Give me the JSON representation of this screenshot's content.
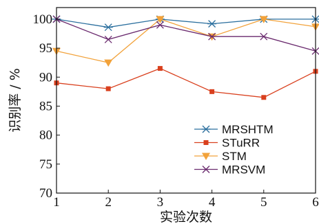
{
  "chart_data": {
    "type": "line",
    "xlabel": "实验次数",
    "ylabel": "识别率 / %",
    "x": [
      1,
      2,
      3,
      4,
      5,
      6
    ],
    "xlim": [
      1,
      6
    ],
    "ylim": [
      70,
      102
    ],
    "xticks": [
      "1",
      "2",
      "3",
      "4",
      "5",
      "6"
    ],
    "yticks": [
      70,
      75,
      80,
      85,
      90,
      95,
      100
    ],
    "yticklabels": [
      "70",
      "75",
      "80",
      "85",
      "90",
      "95",
      "100"
    ],
    "grid": false,
    "legend_position": "right",
    "series": [
      {
        "name": "MRSHTM",
        "color": "#2b6f9e",
        "marker": "asterisk",
        "values": [
          100,
          98.6,
          100,
          99.2,
          100,
          100
        ]
      },
      {
        "name": "STuRR",
        "color": "#d9401e",
        "marker": "square",
        "values": [
          89,
          88,
          91.5,
          87.5,
          86.5,
          91
        ]
      },
      {
        "name": "STM",
        "color": "#f2a23a",
        "marker": "triangle-down",
        "values": [
          94.5,
          92.5,
          100,
          97,
          100,
          98.7
        ]
      },
      {
        "name": "MRSVM",
        "color": "#6a2a6e",
        "marker": "x",
        "values": [
          100,
          96.5,
          99,
          97,
          97,
          94.5
        ]
      }
    ]
  }
}
